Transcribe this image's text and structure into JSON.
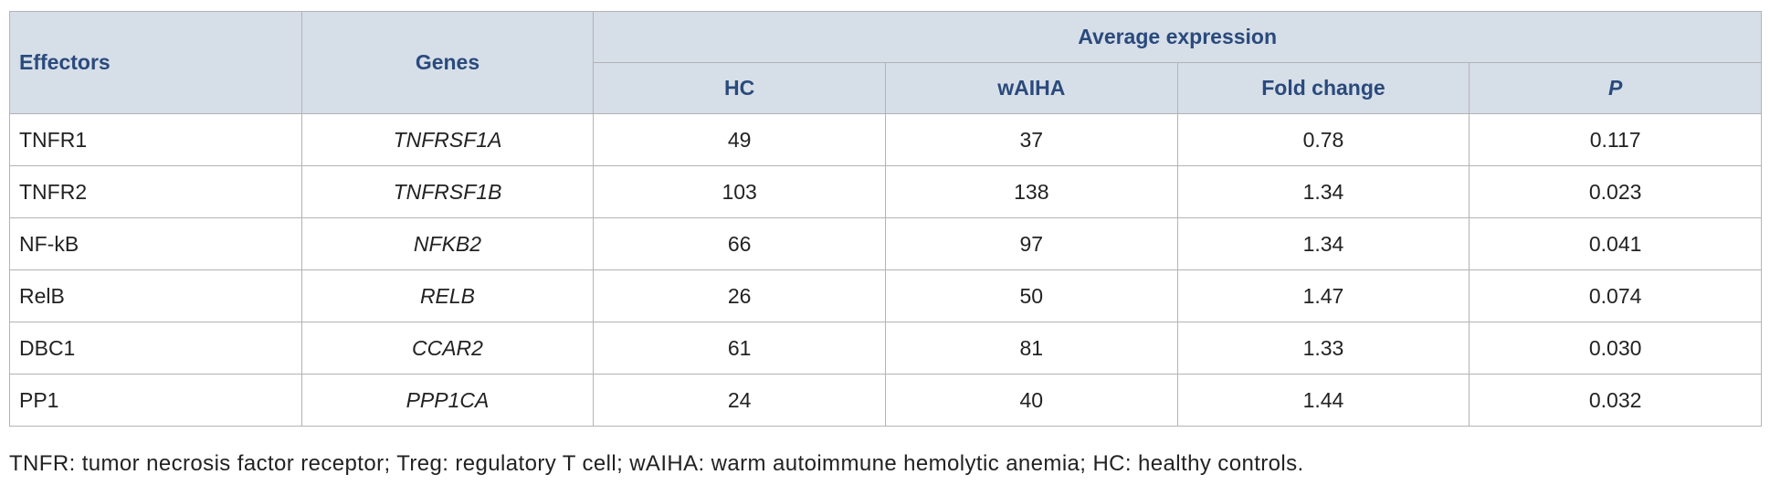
{
  "table": {
    "header": {
      "effectors": "Effectors",
      "genes": "Genes",
      "group": "Average expression",
      "columns": [
        "HC",
        "wAIHA",
        "Fold change",
        "P"
      ]
    },
    "rows": [
      [
        "TNFR1",
        "TNFRSF1A",
        "49",
        "37",
        "0.78",
        "0.117"
      ],
      [
        "TNFR2",
        "TNFRSF1B",
        "103",
        "138",
        "1.34",
        "0.023"
      ],
      [
        "NF-kB",
        "NFKB2",
        "66",
        "97",
        "1.34",
        "0.041"
      ],
      [
        "RelB",
        "RELB",
        "26",
        "50",
        "1.47",
        "0.074"
      ],
      [
        "DBC1",
        "CCAR2",
        "61",
        "81",
        "1.33",
        "0.030"
      ],
      [
        "PP1",
        "PPP1CA",
        "24",
        "40",
        "1.44",
        "0.032"
      ]
    ]
  },
  "footnote": "TNFR: tumor necrosis factor receptor; Treg: regulatory T cell; wAIHA: warm autoimmune hemolytic anemia; HC: healthy controls."
}
